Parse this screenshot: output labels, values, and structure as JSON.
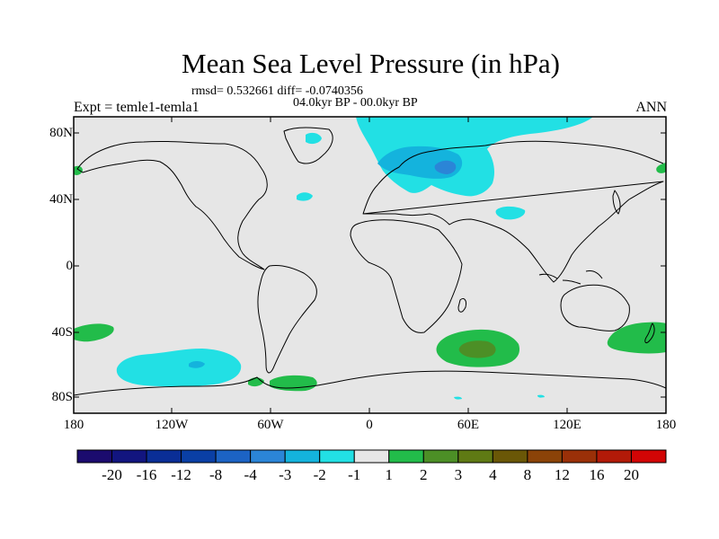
{
  "title": "Mean Sea Level Pressure (in hPa)",
  "stats": "rmsd= 0.532661 diff= -0.0740356",
  "period": "04.0kyr BP - 00.0kyr BP",
  "experiment": "Expt = temle1-temla1",
  "season": "ANN",
  "lat_labels": [
    "80N",
    "40N",
    "0",
    "40S",
    "80S"
  ],
  "lon_labels": [
    "180",
    "120W",
    "60W",
    "0",
    "60E",
    "120E",
    "180"
  ],
  "colorbar": {
    "colors": [
      "#1b0b6e",
      "#12157f",
      "#0a2e96",
      "#0a3fa5",
      "#1c63c4",
      "#2b85d7",
      "#14b3dd",
      "#22e0e4",
      "#e6e6e6",
      "#22bc4a",
      "#4c8f26",
      "#5f7a14",
      "#6a5707",
      "#8b4308",
      "#9a3008",
      "#b21a08",
      "#d20505"
    ],
    "labels": [
      "-20",
      "-16",
      "-12",
      "-8",
      "-4",
      "-3",
      "-2",
      "-1",
      "1",
      "2",
      "3",
      "4",
      "8",
      "12",
      "16",
      "20"
    ]
  },
  "anomaly_colors": {
    "background": "#e6e6e6",
    "neg_light": "#22e0e4",
    "neg_mid": "#14b3dd",
    "neg_strong": "#2b85d7",
    "pos_light": "#22bc4a",
    "pos_strong": "#4c8f26"
  }
}
